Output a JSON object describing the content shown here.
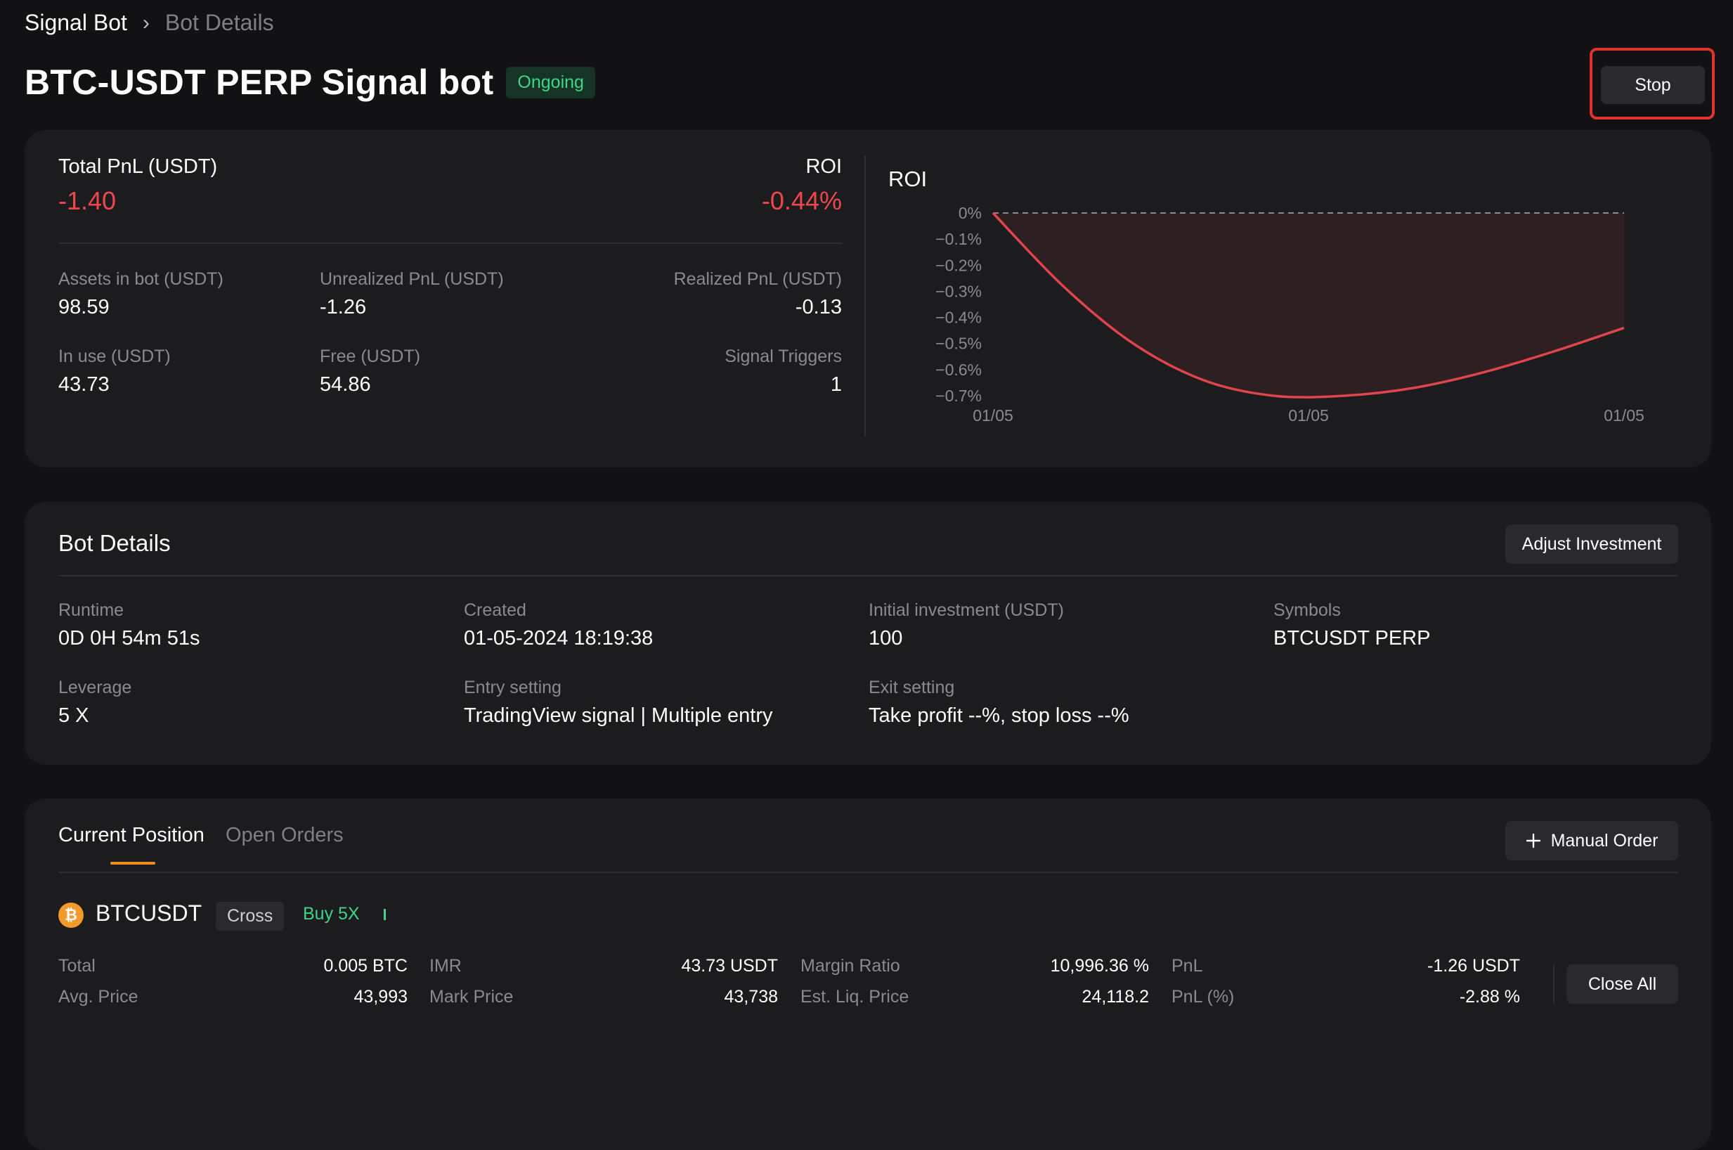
{
  "breadcrumb": {
    "parent": "Signal Bot",
    "separator": "›",
    "current": "Bot Details"
  },
  "header": {
    "title": "BTC-USDT PERP Signal bot",
    "status": "Ongoing",
    "stop_label": "Stop"
  },
  "summary": {
    "total_pnl_label": "Total PnL (USDT)",
    "total_pnl_value": "-1.40",
    "roi_label": "ROI",
    "roi_value": "-0.44%",
    "stats": [
      {
        "label": "Assets in bot (USDT)",
        "value": "98.59"
      },
      {
        "label": "Unrealized PnL (USDT)",
        "value": "-1.26"
      },
      {
        "label": "Realized PnL (USDT)",
        "value": "-0.13"
      },
      {
        "label": "In use (USDT)",
        "value": "43.73"
      },
      {
        "label": "Free (USDT)",
        "value": "54.86"
      },
      {
        "label": "Signal Triggers",
        "value": "1"
      }
    ]
  },
  "chart_data": {
    "type": "area",
    "title": "ROI",
    "y_ticks": [
      "0%",
      "−0.1%",
      "−0.2%",
      "−0.3%",
      "−0.4%",
      "−0.5%",
      "−0.6%",
      "−0.7%"
    ],
    "x_ticks": [
      "01/05",
      "01/05",
      "01/05"
    ],
    "ylim": [
      -0.7,
      0
    ],
    "series": [
      {
        "values": [
          0.0,
          -0.28,
          -0.5,
          -0.64,
          -0.7,
          -0.7,
          -0.67,
          -0.61,
          -0.53,
          -0.44
        ]
      }
    ],
    "baseline": 0,
    "colors": {
      "line": "#e0444d",
      "fill": "#2e1f22",
      "baseline": "#8a8a8f"
    }
  },
  "bot_details": {
    "title": "Bot Details",
    "adjust_label": "Adjust Investment",
    "fields": [
      {
        "label": "Runtime",
        "value": "0D 0H 54m 51s"
      },
      {
        "label": "Created",
        "value": "01-05-2024 18:19:38"
      },
      {
        "label": "Initial investment (USDT)",
        "value": "100"
      },
      {
        "label": "Symbols",
        "value": "BTCUSDT PERP"
      },
      {
        "label": "Leverage",
        "value": "5 X"
      },
      {
        "label": "Entry setting",
        "value": "TradingView signal | Multiple entry"
      },
      {
        "label": "Exit setting",
        "value": "Take profit --%, stop loss --%"
      }
    ]
  },
  "positions": {
    "tabs": [
      "Current Position",
      "Open Orders"
    ],
    "manual_order_label": "Manual Order",
    "symbol": "BTCUSDT",
    "coin_glyph": "₿",
    "margin_mode": "Cross",
    "side": "Buy 5X",
    "close_all_label": "Close All",
    "rows": [
      [
        {
          "label": "Total",
          "value": "0.005 BTC"
        },
        {
          "label": "IMR",
          "value": "43.73 USDT"
        },
        {
          "label": "Margin Ratio",
          "value": "10,996.36 %"
        },
        {
          "label": "PnL",
          "value": "-1.26 USDT"
        }
      ],
      [
        {
          "label": "Avg. Price",
          "value": "43,993"
        },
        {
          "label": "Mark Price",
          "value": "43,738"
        },
        {
          "label": "Est. Liq. Price",
          "value": "24,118.2"
        },
        {
          "label": "PnL (%)",
          "value": "-2.88 %"
        }
      ]
    ]
  }
}
